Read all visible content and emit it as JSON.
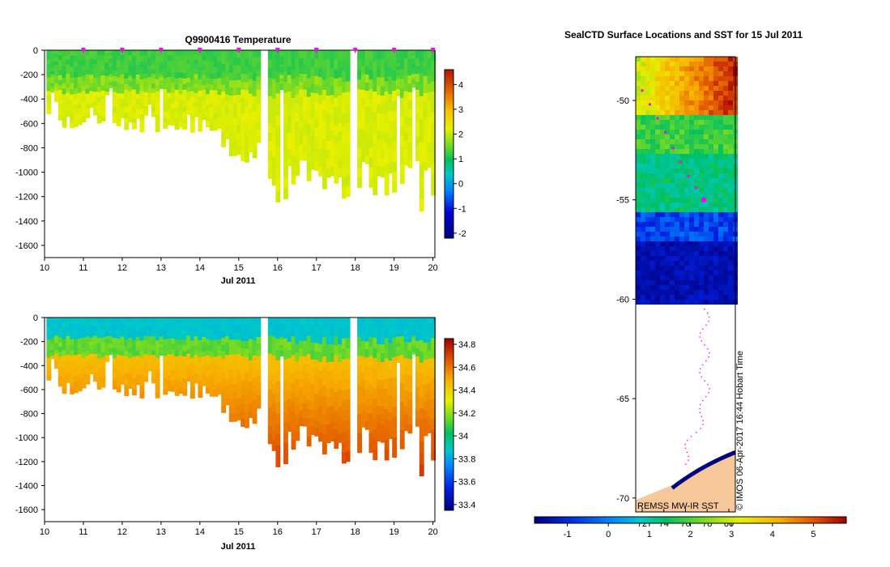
{
  "chart_data": [
    {
      "type": "heatmap",
      "id": "temperature",
      "title": "Q9900416  Temperature",
      "xlabel": "Jul 2011",
      "xlim": [
        10,
        20.05
      ],
      "xticks": [
        10,
        11,
        12,
        13,
        14,
        15,
        16,
        17,
        18,
        19,
        20
      ],
      "ylim": [
        -1700,
        0
      ],
      "yticks": [
        0,
        -200,
        -400,
        -600,
        -800,
        -1000,
        -1200,
        -1400,
        -1600
      ],
      "colorbar": {
        "min": -2.2,
        "max": 4.6,
        "ticks": [
          4,
          3,
          2,
          1,
          0,
          -1,
          -2
        ]
      },
      "surface_markers_x": [
        11,
        12,
        13,
        14,
        15,
        16,
        17,
        18,
        19,
        20
      ],
      "field": {
        "surface_value": 1.0,
        "mixed_layer_value": 1.3,
        "deep_value": 2.0,
        "transition_depth": 320,
        "missing_profiles": [
          [
            15.55,
            15.75
          ],
          [
            17.8,
            18.0
          ]
        ]
      }
    },
    {
      "type": "heatmap",
      "id": "salinity",
      "title": "",
      "xlabel": "Jul 2011",
      "xlim": [
        10,
        20.05
      ],
      "xticks": [
        10,
        11,
        12,
        13,
        14,
        15,
        16,
        17,
        18,
        19,
        20
      ],
      "ylim": [
        -1700,
        0
      ],
      "yticks": [
        0,
        -200,
        -400,
        -600,
        -800,
        -1000,
        -1200,
        -1400,
        -1600
      ],
      "colorbar": {
        "min": 33.35,
        "max": 34.85,
        "ticks": [
          34.8,
          34.6,
          34.4,
          34.2,
          34,
          33.8,
          33.6,
          33.4
        ]
      },
      "field": {
        "surface_value": 33.85,
        "thermocline_value": 34.1,
        "deep_value": 34.45,
        "bottom_value": 34.75
      }
    },
    {
      "type": "map",
      "id": "sst-map",
      "title": "SealCTD Surface Locations and SST for 15 Jul 2011",
      "ylim": [
        -70.7,
        -47.8
      ],
      "yticks": [
        -50,
        -55,
        -60,
        -65,
        -70
      ],
      "xticks": [
        "72",
        "74",
        "76",
        "78",
        "80"
      ],
      "source_label": "REMSS MW-IR SST",
      "credit": "© IMOS 06-Apr-2017 16:44 Hobart Time",
      "colorbar": {
        "min": -1.8,
        "max": 5.8,
        "ticks": [
          -1,
          0,
          1,
          2,
          3,
          4,
          5
        ]
      },
      "track_latitudes": [
        -49.5,
        -50.2,
        -50.9,
        -51.6,
        -52.4,
        -53.1,
        -53.8,
        -54.4,
        -55.0
      ]
    }
  ],
  "colors": {
    "marker": "#ff00ff",
    "land": "#f7c89a",
    "ice_edge": "#ffffff"
  }
}
